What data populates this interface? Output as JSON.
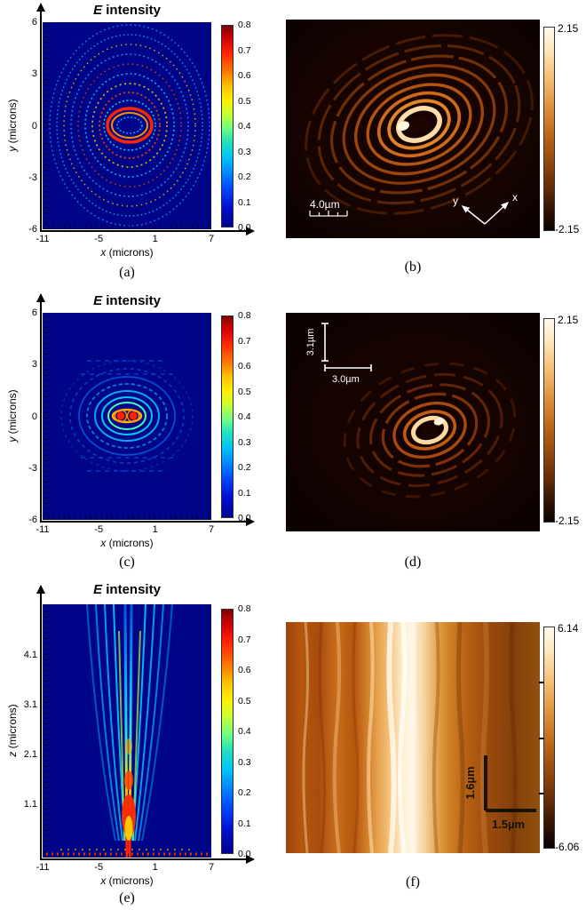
{
  "jet_ticks": [
    "0.8",
    "0.7",
    "0.6",
    "0.5",
    "0.4",
    "0.3",
    "0.2",
    "0.1",
    "0.0"
  ],
  "panels": {
    "a": {
      "title_em": "E",
      "title_rest": " intensity",
      "ylabel_em": "y",
      "ylabel_rest": " (microns)",
      "xlabel_em": "x",
      "xlabel_rest": " (microns)",
      "y_ticks": [
        "6",
        "3",
        "0",
        "-3",
        "-6"
      ],
      "x_ticks": [
        "-11",
        "-5",
        "1",
        "7"
      ],
      "caption": "(a)"
    },
    "b": {
      "scalebar": "4.0µm",
      "arrow_y": "y",
      "arrow_x": "x",
      "cbar_max": "2.15",
      "cbar_min": "-2.15",
      "caption": "(b)"
    },
    "c": {
      "title_em": "E",
      "title_rest": " intensity",
      "ylabel_em": "y",
      "ylabel_rest": " (microns)",
      "xlabel_em": "x",
      "xlabel_rest": " (microns)",
      "y_ticks": [
        "6",
        "3",
        "0",
        "-3",
        "-6"
      ],
      "x_ticks": [
        "-11",
        "-5",
        "1",
        "7"
      ],
      "caption": "(c)"
    },
    "d": {
      "scalebar_v": "3.1µm",
      "scalebar_h": "3.0µm",
      "cbar_max": "2.15",
      "cbar_min": "-2.15",
      "caption": "(d)"
    },
    "e": {
      "title_em": "E",
      "title_rest": " intensity",
      "ylabel_em": "z",
      "ylabel_rest": " (microns)",
      "xlabel_em": "x",
      "xlabel_rest": " (microns)",
      "y_ticks": [
        "4.1",
        "3.1",
        "2.1",
        "1.1"
      ],
      "x_ticks": [
        "-11",
        "-5",
        "1",
        "7"
      ],
      "caption": "(e)"
    },
    "f": {
      "scalebar_v": "1.6µm",
      "scalebar_h": "1.5µm",
      "cbar_max": "6.14",
      "cbar_min": "-6.06",
      "caption": "(f)"
    }
  },
  "colors": {
    "heatmap_background": "#000487",
    "nsom_background": "#170401",
    "accent_red": "#ff2400",
    "accent_cyan": "#00c8ff",
    "copper_bright": "#fff7e0"
  },
  "chart_data": [
    {
      "panel": "(a)",
      "type": "heatmap",
      "title": "E intensity",
      "xlabel": "x (microns)",
      "ylabel": "y (microns)",
      "xlim": [
        -11,
        7
      ],
      "ylim": [
        -6,
        6
      ],
      "x_ticks": [
        -11,
        -5,
        1,
        7
      ],
      "y_ticks": [
        6,
        3,
        0,
        -3,
        -6
      ],
      "colormap": "jet",
      "colorbar_range": [
        0,
        0.8
      ],
      "colorbar_ticks": [
        0.8,
        0.7,
        0.6,
        0.5,
        0.4,
        0.3,
        0.2,
        0.1,
        0.0
      ],
      "content": "simulated concentric elliptical interference rings on dark-blue background; bright red innermost ring near x=1, y=0; outer rings speckled cyan/yellow/red"
    },
    {
      "panel": "(b)",
      "type": "image",
      "colormap": "copper",
      "colorbar_range": [
        -2.15,
        2.15
      ],
      "scale_bar": "4.0µm",
      "axis_arrows": [
        "y",
        "x"
      ],
      "content": "measured near-field image: tilted elliptical fringe rings, bright cream central ring with bright spot, dark background"
    },
    {
      "panel": "(c)",
      "type": "heatmap",
      "title": "E intensity",
      "xlabel": "x (microns)",
      "ylabel": "y (microns)",
      "xlim": [
        -11,
        7
      ],
      "ylim": [
        -6,
        6
      ],
      "x_ticks": [
        -11,
        -5,
        1,
        7
      ],
      "y_ticks": [
        6,
        3,
        0,
        -3,
        -6
      ],
      "colormap": "jet",
      "colorbar_range": [
        0,
        0.8
      ],
      "colorbar_ticks": [
        0.8,
        0.7,
        0.6,
        0.5,
        0.4,
        0.3,
        0.2,
        0.1,
        0.0
      ],
      "content": "simulated focal pattern: two bright red lobes at center surrounded by yellow/cyan ripple fringes and horizontal banding"
    },
    {
      "panel": "(d)",
      "type": "image",
      "colormap": "copper",
      "colorbar_range": [
        -2.15,
        2.15
      ],
      "scale_bar_vertical": "3.1µm",
      "scale_bar_horizontal": "3.0µm",
      "content": "measured near-field image: smaller tilted elliptical fringes with bright central ring, fragmented outer rings"
    },
    {
      "panel": "(e)",
      "type": "heatmap",
      "title": "E intensity",
      "xlabel": "x (microns)",
      "ylabel": "z (microns)",
      "xlim": [
        -11,
        7
      ],
      "y_ticks": [
        4.1,
        3.1,
        2.1,
        1.1
      ],
      "x_ticks": [
        -11,
        -5,
        1,
        7
      ],
      "colormap": "jet",
      "colorbar_range": [
        0,
        0.8
      ],
      "colorbar_ticks": [
        0.8,
        0.7,
        0.6,
        0.5,
        0.4,
        0.3,
        0.2,
        0.1,
        0.0
      ],
      "content": "simulated x-z propagation: cyan streaks converging from wide top toward a bright red/yellow focus near z≈1.1 at x≈1"
    },
    {
      "panel": "(f)",
      "type": "image",
      "colormap": "copper",
      "colorbar_range": [
        -6.06,
        6.14
      ],
      "scale_bar_vertical": "1.6µm",
      "scale_bar_horizontal": "1.5µm",
      "content": "measured x-z cross-section: bright white/cream vertical filament band left of center with orange striations, darker right side"
    }
  ]
}
